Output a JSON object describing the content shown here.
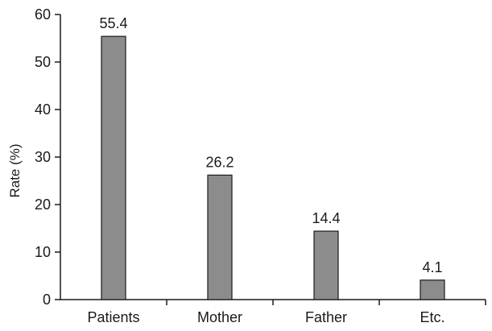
{
  "chart_data": {
    "type": "bar",
    "categories": [
      "Patients",
      "Mother",
      "Father",
      "Etc."
    ],
    "values": [
      55.4,
      26.2,
      14.4,
      4.1
    ],
    "data_labels": [
      "55.4",
      "26.2",
      "14.4",
      "4.1"
    ],
    "ylabel": "Rate (%)",
    "xlabel": "",
    "ylim": [
      0,
      60
    ],
    "yticks": [
      "0",
      "10",
      "20",
      "30",
      "40",
      "50",
      "60"
    ],
    "grid": false,
    "legend": "none",
    "bar_color": "#8c8c8c",
    "bar_edge_color": "#1a1a1a"
  }
}
